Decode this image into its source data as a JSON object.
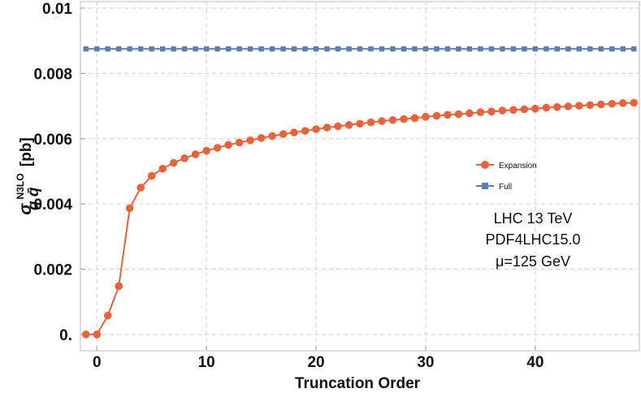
{
  "chart_data": {
    "type": "line",
    "xlabel": "Truncation Order",
    "ylabel": {
      "symbol": "σ",
      "superscript": "N3LO",
      "subscript": "q q̄",
      "unit": "[pb]"
    },
    "xlim": [
      -1.5,
      49.5
    ],
    "ylim": [
      -0.0005,
      0.0102
    ],
    "x_ticks": [
      0,
      10,
      20,
      30,
      40
    ],
    "x_tick_labels": [
      "0",
      "10",
      "20",
      "30",
      "40"
    ],
    "y_ticks": [
      0,
      0.002,
      0.004,
      0.006,
      0.008,
      0.01
    ],
    "y_tick_labels": [
      "0.",
      "0.002",
      "0.004",
      "0.006",
      "0.008",
      "0.01"
    ],
    "grid": true,
    "legend_position": "center-right",
    "series": [
      {
        "name": "Expansion",
        "color": "#e8623a",
        "marker": "circle",
        "x": [
          -1,
          0,
          1,
          2,
          3,
          4,
          5,
          6,
          7,
          8,
          9,
          10,
          11,
          12,
          13,
          14,
          15,
          16,
          17,
          18,
          19,
          20,
          21,
          22,
          23,
          24,
          25,
          26,
          27,
          28,
          29,
          30,
          31,
          32,
          33,
          34,
          35,
          36,
          37,
          38,
          39,
          40,
          41,
          42,
          43,
          44,
          45,
          46,
          47,
          48,
          49
        ],
        "values": [
          0,
          0,
          0.00058,
          0.00148,
          0.00387,
          0.0045,
          0.00486,
          0.00508,
          0.00526,
          0.0054,
          0.00552,
          0.00563,
          0.00572,
          0.00581,
          0.00588,
          0.00595,
          0.00602,
          0.00608,
          0.00614,
          0.00619,
          0.00624,
          0.00629,
          0.00634,
          0.00638,
          0.00642,
          0.00646,
          0.0065,
          0.00654,
          0.00657,
          0.0066,
          0.00663,
          0.00667,
          0.0067,
          0.00673,
          0.00675,
          0.00678,
          0.00681,
          0.00683,
          0.00686,
          0.00688,
          0.0069,
          0.00692,
          0.00695,
          0.00697,
          0.00699,
          0.00701,
          0.00703,
          0.00705,
          0.00707,
          0.00709,
          0.0071
        ]
      },
      {
        "name": "Full",
        "color": "#5b7fb5",
        "marker": "square",
        "x": [
          -1,
          0,
          1,
          2,
          3,
          4,
          5,
          6,
          7,
          8,
          9,
          10,
          11,
          12,
          13,
          14,
          15,
          16,
          17,
          18,
          19,
          20,
          21,
          22,
          23,
          24,
          25,
          26,
          27,
          28,
          29,
          30,
          31,
          32,
          33,
          34,
          35,
          36,
          37,
          38,
          39,
          40,
          41,
          42,
          43,
          44,
          45,
          46,
          47,
          48,
          49
        ],
        "values": [
          0.00875,
          0.00875,
          0.00875,
          0.00875,
          0.00875,
          0.00875,
          0.00875,
          0.00875,
          0.00875,
          0.00875,
          0.00875,
          0.00875,
          0.00875,
          0.00875,
          0.00875,
          0.00875,
          0.00875,
          0.00875,
          0.00875,
          0.00875,
          0.00875,
          0.00875,
          0.00875,
          0.00875,
          0.00875,
          0.00875,
          0.00875,
          0.00875,
          0.00875,
          0.00875,
          0.00875,
          0.00875,
          0.00875,
          0.00875,
          0.00875,
          0.00875,
          0.00875,
          0.00875,
          0.00875,
          0.00875,
          0.00875,
          0.00875,
          0.00875,
          0.00875,
          0.00875,
          0.00875,
          0.00875,
          0.00875,
          0.00875,
          0.00875,
          0.00875
        ]
      }
    ],
    "annotations": [
      "LHC 13 TeV",
      "PDF4LHC15.0",
      "μ=125 GeV"
    ]
  }
}
